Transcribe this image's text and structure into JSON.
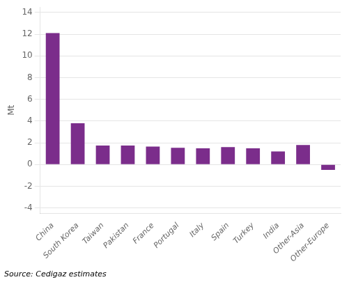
{
  "chart_data": {
    "type": "bar",
    "categories": [
      "China",
      "South Korea",
      "Taiwan",
      "Pakistan",
      "France",
      "Portugal",
      "Italy",
      "Spain",
      "Turkey",
      "India",
      "Other-Asia",
      "Other-Europe"
    ],
    "values": [
      12.1,
      3.8,
      1.75,
      1.75,
      1.65,
      1.55,
      1.5,
      1.6,
      1.5,
      1.2,
      1.8,
      -0.5
    ],
    "color": "#7B2D8B",
    "ylabel": "Mt",
    "ylim": [
      -4.5,
      14.5
    ],
    "yticks": [
      -4,
      -2,
      0,
      2,
      4,
      6,
      8,
      10,
      12,
      14
    ],
    "annotations": [
      "Source: Cedigaz estimates"
    ],
    "grid": true
  }
}
